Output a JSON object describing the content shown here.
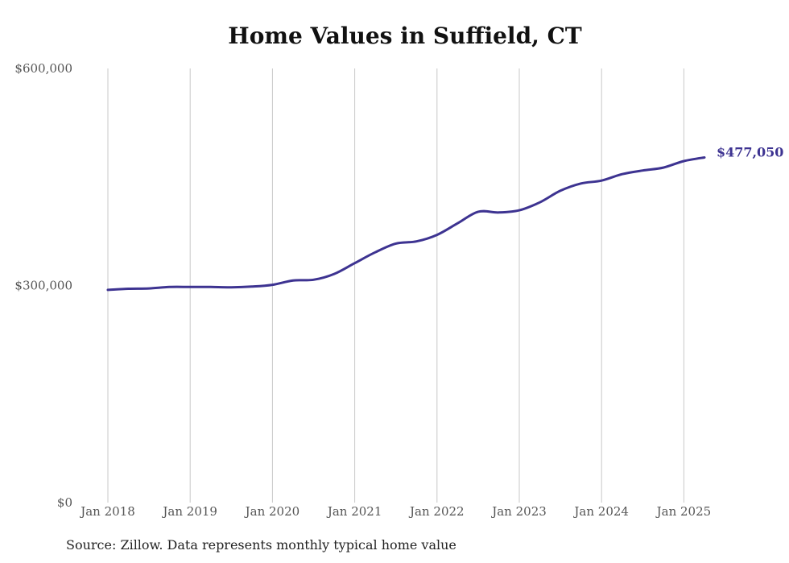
{
  "title": "Home Values in Suffield, CT",
  "source": "Source: Zillow. Data represents monthly typical home value",
  "colors": {
    "line": "#3d3391",
    "grid": "#c8c8c8",
    "text": "#555555"
  },
  "chart_data": {
    "type": "line",
    "title": "Home Values in Suffield, CT",
    "xlabel": "",
    "ylabel": "",
    "ylim": [
      0,
      600000
    ],
    "y_ticks": [
      {
        "value": 0,
        "label": "$0"
      },
      {
        "value": 300000,
        "label": "$300,000"
      },
      {
        "value": 600000,
        "label": "$600,000"
      }
    ],
    "x_ticks": [
      {
        "value": "2018-01",
        "label": "Jan 2018"
      },
      {
        "value": "2019-01",
        "label": "Jan 2019"
      },
      {
        "value": "2020-01",
        "label": "Jan 2020"
      },
      {
        "value": "2021-01",
        "label": "Jan 2021"
      },
      {
        "value": "2022-01",
        "label": "Jan 2022"
      },
      {
        "value": "2023-01",
        "label": "Jan 2023"
      },
      {
        "value": "2024-01",
        "label": "Jan 2024"
      },
      {
        "value": "2025-01",
        "label": "Jan 2025"
      }
    ],
    "grid": "vertical",
    "end_label": "$477,050",
    "series": [
      {
        "x": [
          "2018-01",
          "2018-04",
          "2018-07",
          "2018-10",
          "2019-01",
          "2019-04",
          "2019-07",
          "2019-10",
          "2020-01",
          "2020-04",
          "2020-07",
          "2020-10",
          "2021-01",
          "2021-04",
          "2021-07",
          "2021-10",
          "2022-01",
          "2022-04",
          "2022-07",
          "2022-10",
          "2023-01",
          "2023-04",
          "2023-07",
          "2023-10",
          "2024-01",
          "2024-04",
          "2024-07",
          "2024-10",
          "2025-01",
          "2025-04"
        ],
        "values": [
          294000,
          295500,
          296000,
          298000,
          298000,
          298000,
          297500,
          298500,
          301000,
          307000,
          308000,
          316000,
          331000,
          346000,
          358000,
          361000,
          370000,
          386000,
          402000,
          401000,
          404000,
          415000,
          431000,
          441000,
          445000,
          454000,
          459000,
          463000,
          472000,
          477050
        ]
      }
    ]
  }
}
